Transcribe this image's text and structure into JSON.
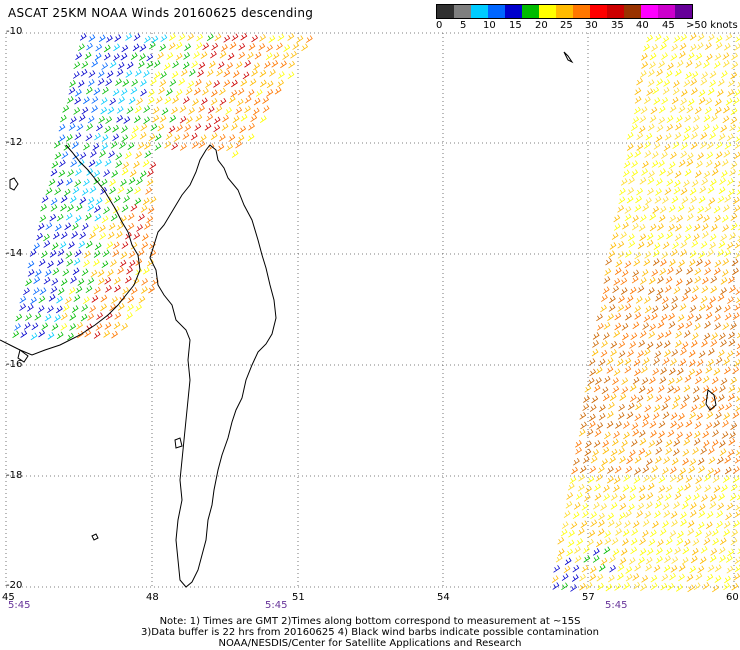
{
  "title": "ASCAT 25KM NOAA Winds 20160625 descending",
  "legend": {
    "unit_label": ">50 knots",
    "ticks": [
      "0",
      "5",
      "10",
      "15",
      "20",
      "25",
      "30",
      "35",
      "40",
      "45"
    ],
    "colors": [
      "#303030",
      "#7f7f7f",
      "#00ccff",
      "#0066ff",
      "#0000cc",
      "#00bb00",
      "#ffff00",
      "#ffbb00",
      "#ff7700",
      "#ff0000",
      "#cc0000",
      "#993300",
      "#ff00ff",
      "#cc00cc",
      "#660099"
    ]
  },
  "axes": {
    "lat_labels": [
      "-10",
      "-12",
      "-14",
      "-16",
      "-18",
      "-20"
    ],
    "lon_labels": [
      "45",
      "48",
      "51",
      "54",
      "57",
      "60"
    ]
  },
  "times": [
    "5:45",
    "5:45",
    "5:45"
  ],
  "notes": {
    "line1": "Note: 1) Times are GMT 2)Times along bottom correspond to measurement at ~15S",
    "line2": "3)Data buffer is 22 hrs from 20160625 4) Black wind barbs indicate possible contamination",
    "line3": "NOAA/NESDIS/Center for Satellite Applications and Research"
  }
}
